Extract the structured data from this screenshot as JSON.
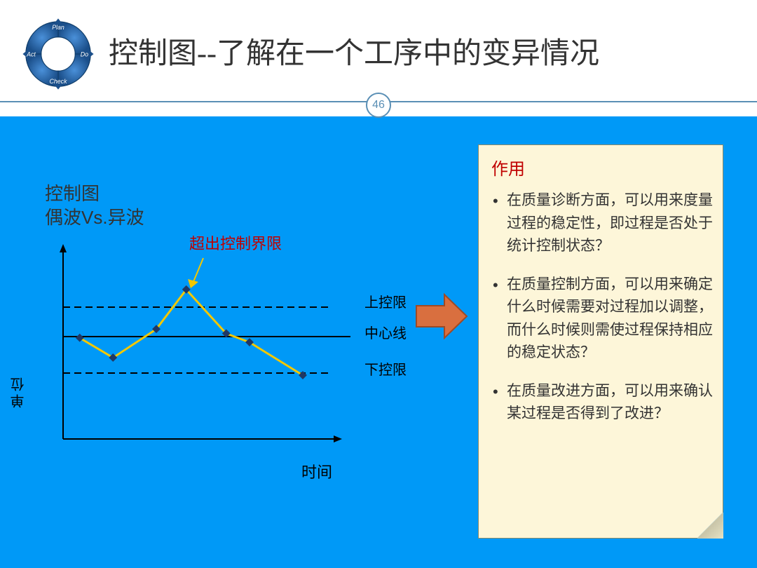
{
  "header": {
    "title": "控制图--了解在一个工序中的变异情况",
    "page_number": "46",
    "header_color": "#5a8fb5",
    "pdca_labels": {
      "plan": "Plan",
      "do": "Do",
      "check": "Check",
      "act": "Act"
    }
  },
  "body": {
    "background_color": "#0099f7"
  },
  "chart": {
    "type": "control-chart-line",
    "title_line1": "控制图",
    "title_line2": "偶波Vs.异波",
    "y_axis_label": "单位",
    "x_axis_label": "时间",
    "annotation_out_limit": "超出控制界限",
    "annotation_arrow_color": "#f2c800",
    "labels": {
      "ucl": "上控限",
      "cl": "中心线",
      "lcl": "下控限"
    },
    "axis_range": {
      "x_min": 0,
      "x_max": 8,
      "y_min": 0,
      "y_max": 10
    },
    "center_line_y": 5.4,
    "ucl_y": 6.6,
    "lcl_y": 3.6,
    "series": {
      "points": [
        {
          "x": 0.5,
          "y": 5.2
        },
        {
          "x": 1.5,
          "y": 4.3
        },
        {
          "x": 2.8,
          "y": 5.6
        },
        {
          "x": 3.7,
          "y": 7.4
        },
        {
          "x": 4.9,
          "y": 5.4
        },
        {
          "x": 5.6,
          "y": 5.0
        },
        {
          "x": 7.2,
          "y": 3.5
        }
      ],
      "line_color": "#f2c800",
      "line_width": 3,
      "marker_color": "#203864",
      "marker_size": 6
    },
    "axis_color": "#000000",
    "dash_color": "#000000"
  },
  "info_box": {
    "background": "#fdf6d9",
    "border_color": "#8a8a6a",
    "header": "作用",
    "header_color": "#c00000",
    "bullets": [
      "在质量诊断方面，可以用来度量过程的稳定性，即过程是否处于统计控制状态？",
      "在质量控制方面，可以用来确定什么时候需要对过程加以调整，而什么时候则需使过程保持相应的稳定状态？",
      "在质量改进方面，可以用来确认某过程是否得到了改进？"
    ]
  },
  "arrow": {
    "fill": "#d96f3f",
    "stroke": "#a04a24"
  }
}
